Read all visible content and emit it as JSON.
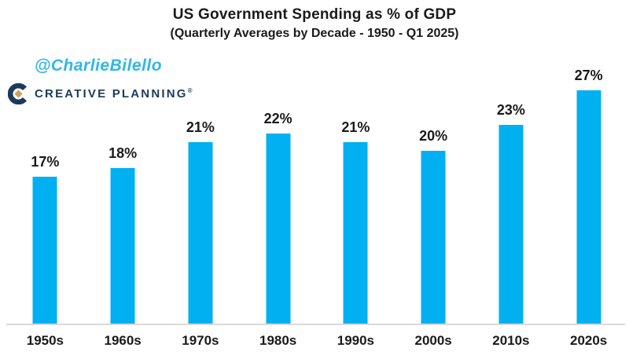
{
  "header": {
    "title": "US Government Spending as % of GDP",
    "subtitle": "(Quarterly Averages by Decade - 1950 - Q1 2025)"
  },
  "credit": {
    "handle": "@CharlieBilello",
    "logo_text": "CREATIVE PLANNING",
    "logo_trademark": "®",
    "logo_mark": "creative-planning-c-icon"
  },
  "colors": {
    "bar": "#00B0F0",
    "handle_text": "#2FB6E9",
    "logo_navy": "#1C3A5B",
    "logo_gold": "#C9A45C",
    "axis_line": "#D9D9D9",
    "text": "#1A1A1A"
  },
  "chart_data": {
    "type": "bar",
    "title": "US Government Spending as % of GDP",
    "subtitle": "(Quarterly Averages by Decade - 1950 - Q1 2025)",
    "categories": [
      "1950s",
      "1960s",
      "1970s",
      "1980s",
      "1990s",
      "2000s",
      "2010s",
      "2020s"
    ],
    "values": [
      17,
      18,
      21,
      22,
      21,
      20,
      23,
      27
    ],
    "value_labels": [
      "17%",
      "18%",
      "21%",
      "22%",
      "21%",
      "20%",
      "23%",
      "27%"
    ],
    "xlabel": "",
    "ylabel": "",
    "ylim": [
      0,
      30
    ],
    "grid": false,
    "legend": false,
    "y_axis_visible": false,
    "bar_color": "#00B0F0",
    "value_labels_position": "above-bar"
  }
}
